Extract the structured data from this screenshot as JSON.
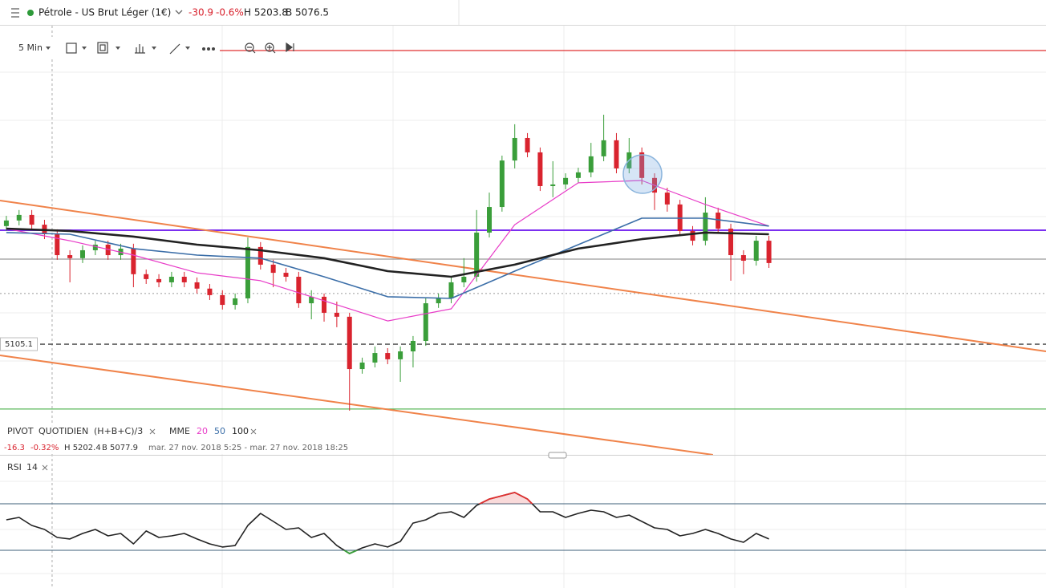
{
  "header": {
    "instrument": "Pétrole - US Brut Léger (1€)",
    "change": "-30.9",
    "change_pct": "-0.6%",
    "high": "H 5203.8",
    "low": "B 5076.5"
  },
  "toolbar": {
    "interval": "5 Min"
  },
  "chart_data": [
    {
      "type": "candlestick",
      "xlim": [
        -0.5,
        81.8
      ],
      "ylim": [
        5057.5,
        5242.1
      ],
      "up_color": "#3a9e3a",
      "down_color": "#d9232e",
      "candles": [
        [
          5155.9,
          5160.3,
          5153.8,
          5158.3
        ],
        [
          5158.3,
          5162.8,
          5156.2,
          5160.7
        ],
        [
          5160.7,
          5162.8,
          5154.5,
          5156.5
        ],
        [
          5156.5,
          5158.6,
          5150.3,
          5152.4
        ],
        [
          5152.4,
          5154.5,
          5141.4,
          5143.4
        ],
        [
          5143.4,
          5145.5,
          5131.7,
          5142.1
        ],
        [
          5142.1,
          5147.6,
          5140.0,
          5145.5
        ],
        [
          5145.5,
          5149.6,
          5143.4,
          5147.9
        ],
        [
          5147.9,
          5149.6,
          5141.4,
          5143.4
        ],
        [
          5143.4,
          5148.3,
          5141.4,
          5146.2
        ],
        [
          5146.2,
          5148.3,
          5129.6,
          5135.2
        ],
        [
          5135.2,
          5137.2,
          5131.0,
          5133.1
        ],
        [
          5133.1,
          5135.2,
          5129.6,
          5131.7
        ],
        [
          5131.7,
          5136.2,
          5129.6,
          5134.1
        ],
        [
          5134.1,
          5136.2,
          5129.6,
          5131.7
        ],
        [
          5131.7,
          5133.8,
          5126.9,
          5129.0
        ],
        [
          5129.0,
          5131.0,
          5124.1,
          5126.2
        ],
        [
          5126.2,
          5128.3,
          5120.0,
          5122.0
        ],
        [
          5122.0,
          5126.9,
          5120.0,
          5124.8
        ],
        [
          5124.8,
          5151.0,
          5122.7,
          5146.9
        ],
        [
          5146.9,
          5149.0,
          5137.2,
          5139.3
        ],
        [
          5139.3,
          5141.4,
          5129.6,
          5135.8
        ],
        [
          5135.8,
          5137.9,
          5132.0,
          5134.1
        ],
        [
          5134.1,
          5136.2,
          5120.7,
          5122.7
        ],
        [
          5122.7,
          5128.3,
          5115.8,
          5125.5
        ],
        [
          5125.5,
          5126.9,
          5114.8,
          5118.6
        ],
        [
          5118.6,
          5123.4,
          5112.4,
          5116.9
        ],
        [
          5116.9,
          5118.6,
          5076.5,
          5094.4
        ],
        [
          5094.4,
          5099.3,
          5092.4,
          5097.2
        ],
        [
          5097.2,
          5104.1,
          5095.1,
          5101.3
        ],
        [
          5101.3,
          5103.4,
          5096.5,
          5098.6
        ],
        [
          5098.6,
          5104.1,
          5088.9,
          5102.0
        ],
        [
          5102.0,
          5108.6,
          5095.1,
          5106.5
        ],
        [
          5106.5,
          5124.8,
          5104.4,
          5122.7
        ],
        [
          5122.7,
          5126.9,
          5120.7,
          5124.8
        ],
        [
          5124.8,
          5133.8,
          5122.7,
          5131.7
        ],
        [
          5131.7,
          5142.1,
          5129.6,
          5134.1
        ],
        [
          5134.1,
          5162.8,
          5132.0,
          5153.1
        ],
        [
          5153.1,
          5170.3,
          5151.0,
          5164.1
        ],
        [
          5164.1,
          5186.2,
          5162.1,
          5184.1
        ],
        [
          5184.1,
          5199.7,
          5180.7,
          5193.8
        ],
        [
          5193.8,
          5195.9,
          5185.5,
          5187.6
        ],
        [
          5187.6,
          5189.7,
          5171.0,
          5173.1
        ],
        [
          5173.1,
          5183.8,
          5168.3,
          5173.8
        ],
        [
          5173.8,
          5178.6,
          5171.7,
          5176.6
        ],
        [
          5176.6,
          5181.0,
          5174.5,
          5179.0
        ],
        [
          5179.0,
          5191.7,
          5176.9,
          5185.9
        ],
        [
          5185.9,
          5203.8,
          5183.8,
          5192.8
        ],
        [
          5192.8,
          5195.9,
          5178.6,
          5180.7
        ],
        [
          5180.7,
          5193.8,
          5178.6,
          5187.6
        ],
        [
          5187.6,
          5189.7,
          5173.8,
          5176.6
        ],
        [
          5176.6,
          5178.6,
          5162.8,
          5170.3
        ],
        [
          5170.3,
          5172.4,
          5162.1,
          5165.2
        ],
        [
          5165.2,
          5167.2,
          5151.7,
          5153.8
        ],
        [
          5153.8,
          5155.9,
          5147.6,
          5149.6
        ],
        [
          5149.6,
          5168.3,
          5147.6,
          5161.7
        ],
        [
          5161.7,
          5163.8,
          5152.7,
          5154.8
        ],
        [
          5154.8,
          5156.9,
          5132.4,
          5143.4
        ],
        [
          5143.4,
          5145.5,
          5135.2,
          5141.0
        ],
        [
          5141.0,
          5151.7,
          5138.9,
          5149.6
        ],
        [
          5149.6,
          5151.7,
          5137.9,
          5140.0
        ]
      ],
      "indicator": {
        "name": "PIVOT",
        "period": "QUOTIDIEN",
        "formula": "(H+B+C)/3",
        "ma_label": "MME"
      },
      "series": [
        {
          "name": "20",
          "color": "#e83cc8",
          "x": [
            0,
            5,
            10,
            15,
            20,
            25,
            30,
            35,
            40,
            45,
            50,
            55,
            60
          ],
          "values": [
            5154.8,
            5149.6,
            5143.4,
            5135.8,
            5132.4,
            5123.8,
            5115.1,
            5120.3,
            5156.5,
            5174.5,
            5175.5,
            5165.2,
            5155.9
          ]
        },
        {
          "name": "50",
          "color": "#3b6ea8",
          "x": [
            0,
            5,
            10,
            15,
            20,
            25,
            30,
            35,
            40,
            45,
            50,
            55,
            60
          ],
          "values": [
            5153.1,
            5152.4,
            5146.2,
            5143.4,
            5142.1,
            5134.1,
            5125.5,
            5124.8,
            5136.5,
            5147.9,
            5159.3,
            5159.3,
            5155.9
          ]
        },
        {
          "name": "100",
          "color": "#222222",
          "x": [
            0,
            5,
            10,
            15,
            20,
            25,
            30,
            35,
            40,
            45,
            50,
            55,
            60
          ],
          "values": [
            5154.8,
            5153.8,
            5151.4,
            5147.9,
            5145.5,
            5142.1,
            5136.5,
            5134.1,
            5139.3,
            5146.2,
            5150.3,
            5153.1,
            5152.4
          ]
        }
      ],
      "info": {
        "change": "-16.3",
        "change_pct": "-0.32%",
        "high": "H 5202.4",
        "low": "B 5077.9",
        "range": "mar. 27 nov. 2018 5:25 - mar. 27 nov. 2018 18:25"
      },
      "levels": [
        {
          "value": 5231.4,
          "color": "#e03030",
          "style": "solid"
        },
        {
          "value": 5154.1,
          "color": "#7b2ff0",
          "style": "bold"
        },
        {
          "value": 5141.7,
          "color": "#9a9a9a",
          "style": "solid"
        },
        {
          "value": 5126.9,
          "color": "#9a9a9a",
          "style": "dotted"
        },
        {
          "value": 5105.1,
          "color": "#444444",
          "style": "dashed",
          "labeled": true
        },
        {
          "value": 5077.2,
          "color": "#5cb85c",
          "style": "solid"
        }
      ],
      "trendlines": [
        {
          "x": [
            -0.5,
            81.8
          ],
          "values": [
            5166.9,
            5102.0
          ],
          "color": "#f0834a"
        },
        {
          "x": [
            -0.5,
            55.6
          ],
          "values": [
            5100.3,
            5057.5
          ],
          "color": "#f0834a"
        }
      ],
      "cursor_x": 3.6
    },
    {
      "type": "line",
      "title": "RSI",
      "period": 14,
      "xlim": [
        -0.5,
        81.8
      ],
      "ylim": [
        0,
        100
      ],
      "levels": [
        70,
        30
      ],
      "color": "#222222",
      "over_color": "#e03030",
      "under_color": "#3aa03a",
      "values": [
        56.2,
        58.3,
        51.4,
        47.9,
        41.0,
        39.7,
        44.5,
        47.9,
        42.4,
        44.5,
        35.5,
        46.6,
        41.0,
        42.4,
        44.5,
        39.7,
        35.5,
        32.8,
        34.1,
        51.4,
        61.7,
        54.8,
        47.9,
        49.3,
        41.0,
        44.5,
        34.1,
        27.2,
        32.1,
        35.5,
        32.8,
        37.6,
        53.4,
        56.2,
        61.7,
        63.1,
        58.3,
        68.6,
        74.1,
        76.9,
        79.7,
        74.1,
        63.1,
        63.1,
        58.3,
        61.7,
        64.5,
        63.1,
        58.3,
        60.3,
        54.8,
        49.3,
        47.9,
        42.4,
        44.5,
        47.9,
        44.5,
        39.7,
        36.9,
        44.5,
        39.7
      ]
    }
  ]
}
